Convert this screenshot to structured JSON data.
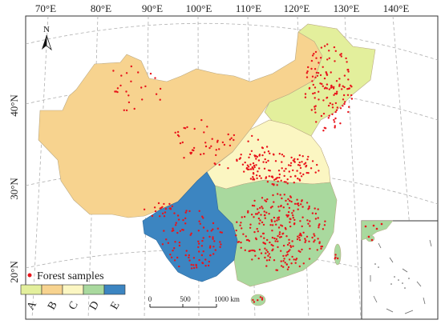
{
  "graticule": {
    "top_labels": [
      "70°E",
      "80°E",
      "90°E",
      "100°E",
      "110°E",
      "120°E",
      "130°E",
      "140°E"
    ],
    "left_labels": [
      "40°N",
      "30°N",
      "20°N"
    ]
  },
  "north_arrow": {
    "label": "N"
  },
  "legend": {
    "samples_label": "Forest samples",
    "sample_color": "#e8141b",
    "classes": [
      {
        "key": "A",
        "color": "#e3ef9c"
      },
      {
        "key": "B",
        "color": "#f7d38f"
      },
      {
        "key": "C",
        "color": "#fbf6c2"
      },
      {
        "key": "D",
        "color": "#a9d99e"
      },
      {
        "key": "E",
        "color": "#3c85c1"
      }
    ]
  },
  "scale_bar": {
    "labels": [
      "0",
      "500",
      "1000 km"
    ]
  }
}
